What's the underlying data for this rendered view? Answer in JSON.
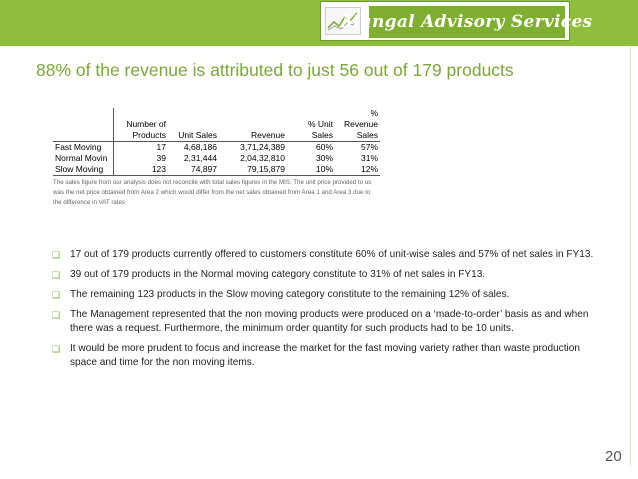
{
  "logo": {
    "text": "Mangal Advisory Services",
    "icon": "trend-graph-icon"
  },
  "title": "88% of the revenue is attributed to just 56 out of 179 products",
  "table": {
    "header_row1": [
      "",
      "",
      "",
      "",
      "",
      "%"
    ],
    "header_row2": [
      "",
      "Number of",
      "",
      "",
      "% Unit",
      "Revenue"
    ],
    "header_row3": [
      "",
      "Products",
      "Unit Sales",
      "Revenue",
      "Sales",
      "Sales"
    ],
    "rows": [
      [
        "Fast Moving",
        "17",
        "4,68,186",
        "3,71,24,389",
        "60%",
        "57%"
      ],
      [
        "Normal Movin",
        "39",
        "2,31,444",
        "2,04,32,810",
        "30%",
        "31%"
      ],
      [
        "Slow Moving",
        "123",
        "74,897",
        "79,15,879",
        "10%",
        "12%"
      ]
    ],
    "note": "The sales figure from our analysis does not reconcile with total sales figures in the MIS. The unit price provided to us was the net price obtained from Area 2 which would differ from the net sales obtained from Area 1 and Area 3 due to the difference in VAT rates"
  },
  "bullets": [
    "17 out of 179 products currently offered to customers constitute 60% of unit-wise sales and 57% of net sales in FY13.",
    "39 out of 179 products in the Normal moving category constitute to 31% of net sales in FY13.",
    "The remaining 123 products in the Slow moving category constitute to the remaining 12% of sales.",
    "The Management represented that the non moving products were produced on a ‘made-to-order’ basis as and when there was a request. Furthermore, the minimum order quantity for such products had to be 10 units.",
    "It would be more prudent to focus and increase the market for the fast moving variety rather than waste production space and time for the non moving items."
  ],
  "bullet_icon": "square-bullet-icon",
  "page_number": "20",
  "colors": {
    "accent": "#8dbe3c",
    "title": "#7aa737"
  }
}
